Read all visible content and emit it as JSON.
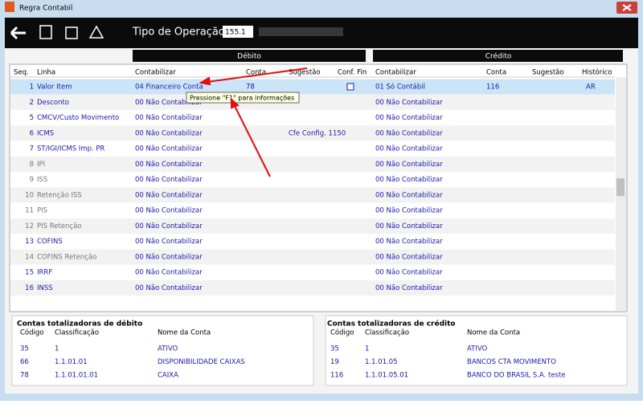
{
  "window": {
    "title": "Regra Contabil"
  },
  "toolbar": {
    "label": "Tipo de Operação",
    "input": "155.1"
  },
  "grid": {
    "debito": "Débito",
    "credito": "Crédito",
    "headers": [
      "Seq.",
      "Linha",
      "Contabilizar",
      "Conta",
      "Sugestão",
      "Conf. Fin",
      "Contabilizar",
      "Conta",
      "Sugestão",
      "Histórico"
    ],
    "rows": [
      {
        "seq": "1",
        "linha": "Valor Item",
        "d_contabilizar": "04 Financeiro Conta",
        "d_conta": "78",
        "c_contabilizar": "01 Só Contábil",
        "c_conta": "116",
        "historico": "AR",
        "color": "#1a1aa8"
      },
      {
        "seq": "2",
        "linha": "Desconto",
        "d_contabilizar": "00 Não Contabilizar",
        "c_contabilizar": "00 Não Contabilizar",
        "color": "#1a1aa8"
      },
      {
        "seq": "5",
        "linha": "CMCV/Custo Movimento",
        "d_contabilizar": "00 Não Contabilizar",
        "c_contabilizar": "00 Não Contabilizar",
        "color": "#1a1aa8"
      },
      {
        "seq": "6",
        "linha": "ICMS",
        "d_contabilizar": "00 Não Contabilizar",
        "d_sugestao": "Cfe Config. 1150",
        "c_contabilizar": "00 Não Contabilizar",
        "color": "#1a1aa8"
      },
      {
        "seq": "7",
        "linha": "ST/IGI/ICMS Imp. PR",
        "d_contabilizar": "00 Não Contabilizar",
        "c_contabilizar": "00 Não Contabilizar",
        "color": "#1a1aa8"
      },
      {
        "seq": "8",
        "linha": "IPI",
        "d_contabilizar": "00 Não Contabilizar",
        "c_contabilizar": "00 Não Contabilizar",
        "color": "#777777"
      },
      {
        "seq": "9",
        "linha": "ISS",
        "d_contabilizar": "00 Não Contabilizar",
        "c_contabilizar": "00 Não Contabilizar",
        "color": "#777777"
      },
      {
        "seq": "10",
        "linha": "Retenção ISS",
        "d_contabilizar": "00 Não Contabilizar",
        "c_contabilizar": "00 Não Contabilizar",
        "color": "#777777"
      },
      {
        "seq": "11",
        "linha": "PIS",
        "d_contabilizar": "00 Não Contabilizar",
        "c_contabilizar": "00 Não Contabilizar",
        "color": "#777777"
      },
      {
        "seq": "12",
        "linha": "PIS Retenção",
        "d_contabilizar": "00 Não Contabilizar",
        "c_contabilizar": "00 Não Contabilizar",
        "color": "#777777"
      },
      {
        "seq": "13",
        "linha": "COFINS",
        "d_contabilizar": "00 Não Contabilizar",
        "c_contabilizar": "00 Não Contabilizar",
        "color": "#1a1aa8"
      },
      {
        "seq": "14",
        "linha": "COFINS Retenção",
        "d_contabilizar": "00 Não Contabilizar",
        "c_contabilizar": "00 Não Contabilizar",
        "color": "#777777"
      },
      {
        "seq": "15",
        "linha": "IRRF",
        "d_contabilizar": "00 Não Contabilizar",
        "c_contabilizar": "00 Não Contabilizar",
        "color": "#1a1aa8"
      },
      {
        "seq": "16",
        "linha": "INSS",
        "d_contabilizar": "00 Não Contabilizar",
        "c_contabilizar": "00 Não Contabilizar",
        "color": "#1a1aa8"
      }
    ]
  },
  "tooltip": "Pressione \"F1\" para informações",
  "totals": [
    {
      "title": "Contas totalizadoras de débito",
      "headers": [
        "Código",
        "Classificação",
        "Nome da Conta"
      ],
      "rows": [
        [
          "35",
          "1",
          "ATIVO"
        ],
        [
          "66",
          "1.1.01.01",
          "DISPONIBILIDADE CAIXAS"
        ],
        [
          "78",
          "1.1.01.01.01",
          "CAIXA"
        ]
      ]
    },
    {
      "title": "Contas totalizadoras de crédito",
      "headers": [
        "Código",
        "Classificação",
        "Nome da Conta"
      ],
      "rows": [
        [
          "35",
          "1",
          "ATIVO"
        ],
        [
          "19",
          "1.1.01.05",
          "BANCOS CTA MOVIMENTO"
        ],
        [
          "116",
          "1.1.01.05.01",
          "BANCO DO BRASIL S.A. teste"
        ]
      ]
    }
  ]
}
